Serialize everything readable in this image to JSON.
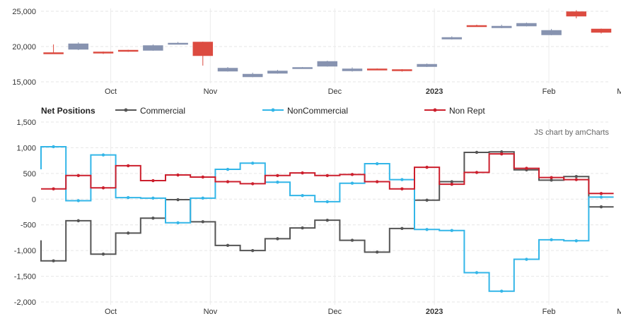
{
  "chart_data": [
    {
      "type": "candlestick",
      "title": "",
      "ylim": [
        15000,
        25500
      ],
      "yticks": [
        15000,
        20000,
        25000
      ],
      "ytick_labels": [
        "15,000",
        "20,000",
        "25,000"
      ],
      "x_ticks": [
        {
          "label": "Oct",
          "week": 2.8,
          "bold": false
        },
        {
          "label": "Nov",
          "week": 6.8,
          "bold": false
        },
        {
          "label": "Dec",
          "week": 11.8,
          "bold": false
        },
        {
          "label": "2023",
          "week": 15.8,
          "bold": true
        },
        {
          "label": "Feb",
          "week": 20.4,
          "bold": false
        },
        {
          "label": "Mar",
          "week": 23.4,
          "bold": false
        }
      ],
      "up_color": "#8793b0",
      "down_color": "#dc4b40",
      "candles": [
        {
          "week": 0.5,
          "open": 19150,
          "high": 20300,
          "low": 19000,
          "close": 19100
        },
        {
          "week": 1.5,
          "open": 19600,
          "high": 20600,
          "low": 19500,
          "close": 20400
        },
        {
          "week": 2.5,
          "open": 19250,
          "high": 19300,
          "low": 18950,
          "close": 19050
        },
        {
          "week": 3.5,
          "open": 19500,
          "high": 19550,
          "low": 19250,
          "close": 19350
        },
        {
          "week": 4.5,
          "open": 19450,
          "high": 20300,
          "low": 19400,
          "close": 20150
        },
        {
          "week": 5.5,
          "open": 20450,
          "high": 20650,
          "low": 20350,
          "close": 20500
        },
        {
          "week": 6.5,
          "open": 20650,
          "high": 20700,
          "low": 17300,
          "close": 18700
        },
        {
          "week": 7.5,
          "open": 16500,
          "high": 17100,
          "low": 16450,
          "close": 16950
        },
        {
          "week": 8.5,
          "open": 15700,
          "high": 16300,
          "low": 15650,
          "close": 16100
        },
        {
          "week": 9.5,
          "open": 16200,
          "high": 16700,
          "low": 16150,
          "close": 16550
        },
        {
          "week": 10.5,
          "open": 16950,
          "high": 17100,
          "low": 16900,
          "close": 17050
        },
        {
          "week": 11.5,
          "open": 17200,
          "high": 18000,
          "low": 17150,
          "close": 17900
        },
        {
          "week": 12.5,
          "open": 16550,
          "high": 17050,
          "low": 16450,
          "close": 16850
        },
        {
          "week": 13.5,
          "open": 16850,
          "high": 16900,
          "low": 16650,
          "close": 16700
        },
        {
          "week": 14.5,
          "open": 16750,
          "high": 16800,
          "low": 16450,
          "close": 16550
        },
        {
          "week": 15.5,
          "open": 17150,
          "high": 17600,
          "low": 17100,
          "close": 17500
        },
        {
          "week": 16.5,
          "open": 21050,
          "high": 21450,
          "low": 21000,
          "close": 21300
        },
        {
          "week": 17.5,
          "open": 23000,
          "high": 23100,
          "low": 22850,
          "close": 22950
        },
        {
          "week": 18.5,
          "open": 22650,
          "high": 23100,
          "low": 22600,
          "close": 22900
        },
        {
          "week": 19.5,
          "open": 22900,
          "high": 23400,
          "low": 22850,
          "close": 23300
        },
        {
          "week": 20.5,
          "open": 21650,
          "high": 22500,
          "low": 21600,
          "close": 22300
        },
        {
          "week": 21.5,
          "open": 24950,
          "high": 25150,
          "low": 24000,
          "close": 24300
        },
        {
          "week": 22.5,
          "open": 22500,
          "high": 22550,
          "low": 21850,
          "close": 22000
        }
      ]
    },
    {
      "type": "line",
      "step": true,
      "title": "Net Positions",
      "ylim": [
        -2000,
        1500
      ],
      "yticks": [
        -2000,
        -1500,
        -1000,
        -500,
        0,
        500,
        1000,
        1500
      ],
      "ytick_labels": [
        "-2,000",
        "-1,500",
        "-1,000",
        "-500",
        "0",
        "500",
        "1,000",
        "1,500"
      ],
      "credit": "JS chart by amCharts",
      "series": [
        {
          "name": "Commercial",
          "color": "#555555",
          "x": [
            0.5,
            1.5,
            2.5,
            3.5,
            4.5,
            5.5,
            6.5,
            7.5,
            8.5,
            9.5,
            10.5,
            11.5,
            12.5,
            13.5,
            14.5,
            15.5,
            16.5,
            17.5,
            18.5,
            19.5,
            20.5,
            21.5,
            22.5
          ],
          "values": [
            -1200,
            -420,
            -1070,
            -660,
            -370,
            -10,
            -440,
            -900,
            -1000,
            -770,
            -560,
            -410,
            -800,
            -1030,
            -570,
            -20,
            340,
            910,
            920,
            570,
            370,
            440,
            -150
          ],
          "start_value": -800
        },
        {
          "name": "NonCommercial",
          "color": "#33b6e8",
          "x": [
            0.5,
            1.5,
            2.5,
            3.5,
            4.5,
            5.5,
            6.5,
            7.5,
            8.5,
            9.5,
            10.5,
            11.5,
            12.5,
            13.5,
            14.5,
            15.5,
            16.5,
            17.5,
            18.5,
            19.5,
            20.5,
            21.5,
            22.5
          ],
          "values": [
            1020,
            -30,
            860,
            30,
            20,
            -460,
            20,
            580,
            700,
            330,
            70,
            -50,
            310,
            690,
            380,
            -590,
            -610,
            -1430,
            -1790,
            -1170,
            -790,
            -810,
            40
          ],
          "start_value": 580
        },
        {
          "name": "Non Rept",
          "color": "#cc1f2d",
          "x": [
            0.5,
            1.5,
            2.5,
            3.5,
            4.5,
            5.5,
            6.5,
            7.5,
            8.5,
            9.5,
            10.5,
            11.5,
            12.5,
            13.5,
            14.5,
            15.5,
            16.5,
            17.5,
            18.5,
            19.5,
            20.5,
            21.5,
            22.5
          ],
          "values": [
            200,
            460,
            220,
            650,
            360,
            470,
            430,
            340,
            300,
            460,
            510,
            460,
            480,
            340,
            200,
            620,
            290,
            520,
            880,
            600,
            420,
            380,
            110
          ],
          "start_value": 200
        }
      ],
      "x_ticks": [
        {
          "label": "Oct",
          "week": 2.8,
          "bold": false
        },
        {
          "label": "Nov",
          "week": 6.8,
          "bold": false
        },
        {
          "label": "Dec",
          "week": 11.8,
          "bold": false
        },
        {
          "label": "2023",
          "week": 15.8,
          "bold": true
        },
        {
          "label": "Feb",
          "week": 20.4,
          "bold": false
        },
        {
          "label": "Mar",
          "week": 23.4,
          "bold": false
        }
      ]
    }
  ]
}
